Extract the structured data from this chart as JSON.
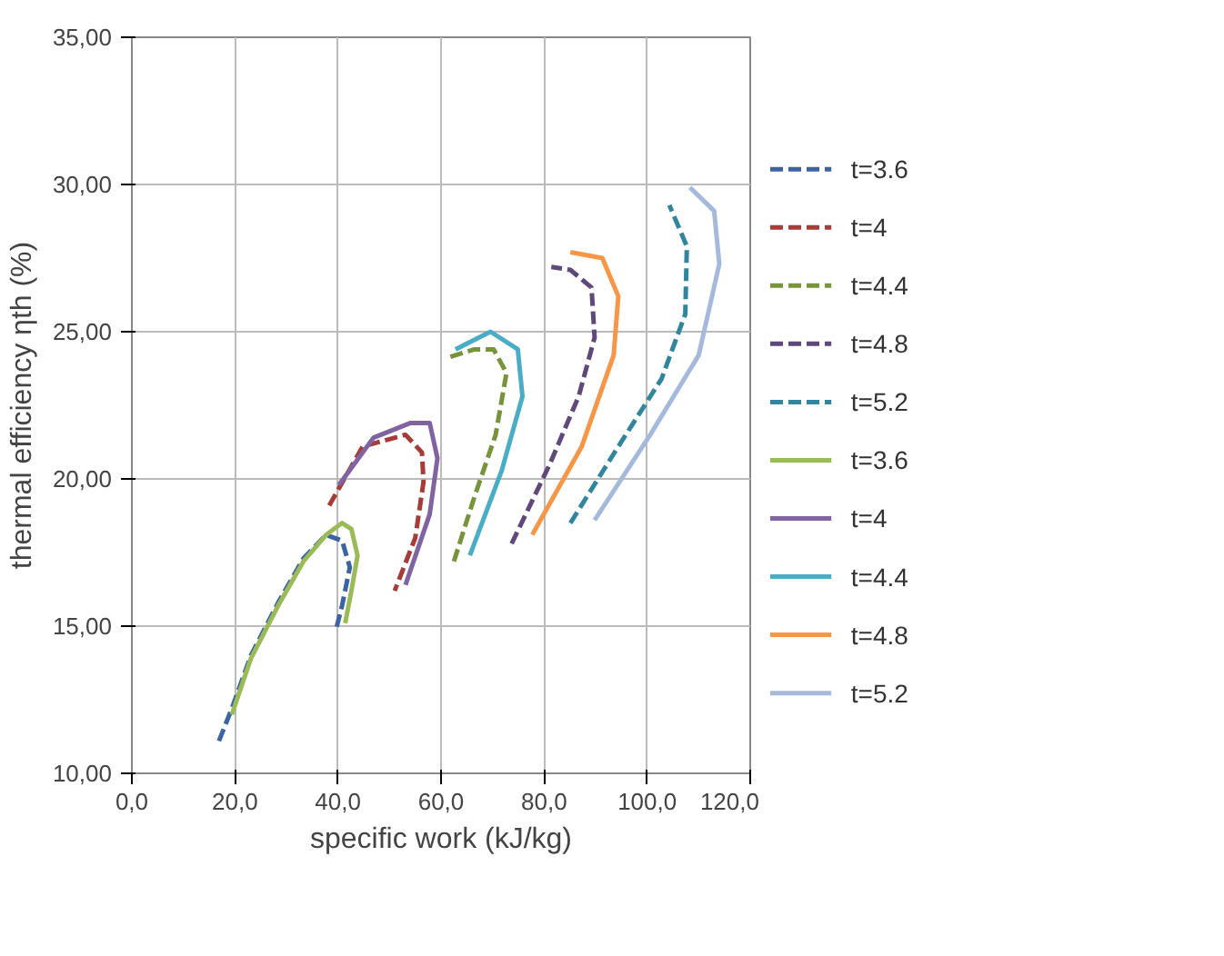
{
  "chart_data": {
    "type": "line",
    "xlabel": "specific work (kJ/kg)",
    "ylabel": "thermal efficiency ηth (%)",
    "xlim": [
      0,
      120
    ],
    "ylim": [
      10,
      35
    ],
    "xticks": [
      {
        "value": 0,
        "label": "0,0"
      },
      {
        "value": 20,
        "label": "20,0"
      },
      {
        "value": 40,
        "label": "40,0"
      },
      {
        "value": 60,
        "label": "60,0"
      },
      {
        "value": 80,
        "label": "80,0"
      },
      {
        "value": 100,
        "label": "100,0"
      },
      {
        "value": 120,
        "label": "120,0"
      }
    ],
    "yticks": [
      {
        "value": 10,
        "label": "10,00"
      },
      {
        "value": 15,
        "label": "15,00"
      },
      {
        "value": 20,
        "label": "20,00"
      },
      {
        "value": 25,
        "label": "25,00"
      },
      {
        "value": 30,
        "label": "30,00"
      },
      {
        "value": 35,
        "label": "35,00"
      }
    ],
    "grid": true,
    "legend": "right",
    "marker": "none",
    "series": [
      {
        "name": "t=3.6",
        "color": "#3b64a0",
        "line_style": "dashed",
        "x": [
          16.9,
          19.4,
          23.1,
          28.4,
          33.3,
          37.7,
          40.8,
          42.3,
          40.8,
          39.5
        ],
        "values": [
          11.1,
          12.2,
          14.0,
          15.8,
          17.3,
          18.1,
          17.9,
          17.0,
          15.7,
          14.8
        ]
      },
      {
        "name": "t=4",
        "color": "#a73b37",
        "line_style": "dashed",
        "x": [
          38.3,
          44.8,
          53.1,
          56.3,
          56.6,
          55.0,
          51.0
        ],
        "values": [
          19.1,
          21.1,
          21.5,
          20.9,
          19.9,
          18.0,
          16.2
        ]
      },
      {
        "name": "t=4.4",
        "color": "#77933c",
        "line_style": "dashed",
        "x": [
          62.5,
          66.5,
          70.6,
          72.7,
          70.2,
          66.5,
          60.9
        ],
        "values": [
          17.2,
          19.4,
          21.5,
          23.6,
          24.4,
          24.4,
          24.1
        ]
      },
      {
        "name": "t=4.8",
        "color": "#5f497a",
        "line_style": "dashed",
        "x": [
          73.7,
          81.1,
          86.7,
          89.8,
          89.2,
          85.1,
          81.4
        ],
        "values": [
          17.8,
          20.5,
          22.8,
          24.8,
          26.5,
          27.1,
          27.2
        ]
      },
      {
        "name": "t=5.2",
        "color": "#31859c",
        "line_style": "dashed",
        "x": [
          85.1,
          94.4,
          102.8,
          107.4,
          107.7,
          104.3
        ],
        "values": [
          18.5,
          21.1,
          23.4,
          25.6,
          27.9,
          29.3
        ]
      },
      {
        "name": "t=3.6",
        "color": "#9bbb59",
        "line_style": "solid",
        "x": [
          19.4,
          23.1,
          28.4,
          33.3,
          37.7,
          40.8,
          42.6,
          43.8,
          42.6,
          41.4
        ],
        "values": [
          12.0,
          13.9,
          15.7,
          17.2,
          18.1,
          18.5,
          18.3,
          17.4,
          16.2,
          15.1
        ]
      },
      {
        "name": "t=4",
        "color": "#8064a2",
        "line_style": "solid",
        "x": [
          40.2,
          46.9,
          54.1,
          57.8,
          59.3,
          57.8,
          53.1
        ],
        "values": [
          19.8,
          21.4,
          21.9,
          21.9,
          20.7,
          18.8,
          16.4
        ]
      },
      {
        "name": "t=4.4",
        "color": "#4bacc6",
        "line_style": "solid",
        "x": [
          62.8,
          69.6,
          74.9,
          75.8,
          71.8,
          65.6
        ],
        "values": [
          24.4,
          25.0,
          24.4,
          22.8,
          20.3,
          17.4
        ]
      },
      {
        "name": "t=4.8",
        "color": "#f79646",
        "line_style": "solid",
        "x": [
          85.1,
          91.3,
          94.4,
          93.5,
          87.3,
          77.7
        ],
        "values": [
          27.7,
          27.5,
          26.2,
          24.2,
          21.1,
          18.1
        ]
      },
      {
        "name": "t=5.2",
        "color": "#a5b9dc",
        "line_style": "solid",
        "x": [
          108.3,
          113.0,
          114.0,
          110.0,
          100.6,
          89.8
        ],
        "values": [
          29.9,
          29.1,
          27.3,
          24.2,
          21.5,
          18.6
        ]
      }
    ]
  }
}
